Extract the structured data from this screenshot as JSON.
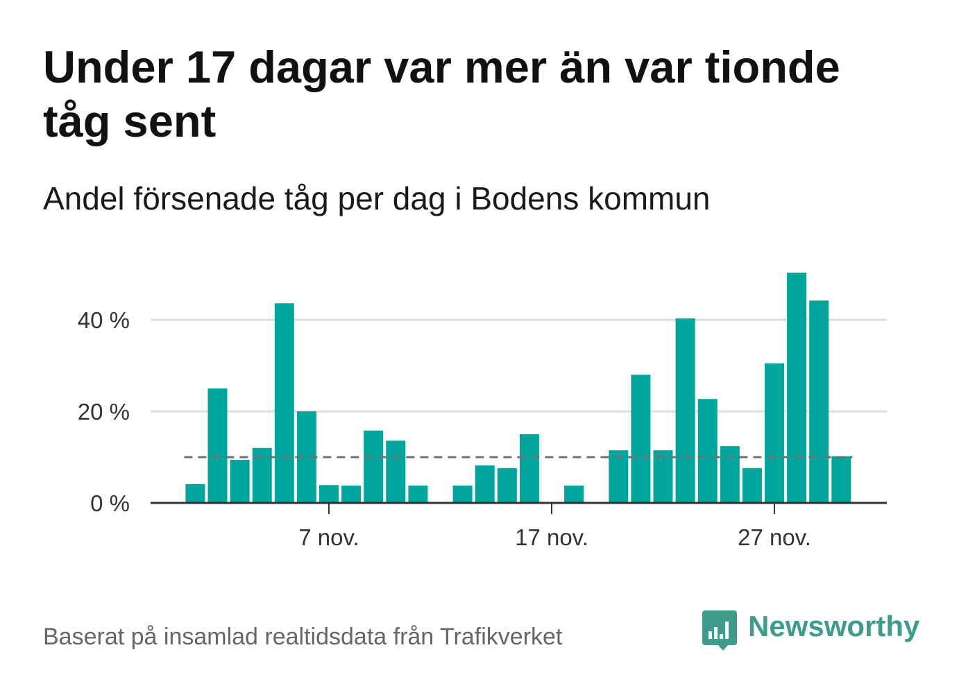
{
  "chart_data": {
    "type": "bar",
    "title": "Under 17 dagar var mer än var tionde tåg sent",
    "subtitle": "Andel försenade tåg per dag i Bodens kommun",
    "x": [
      "1 nov.",
      "2 nov.",
      "3 nov.",
      "4 nov.",
      "5 nov.",
      "6 nov.",
      "7 nov.",
      "8 nov.",
      "9 nov.",
      "10 nov.",
      "11 nov.",
      "12 nov.",
      "13 nov.",
      "14 nov.",
      "15 nov.",
      "16 nov.",
      "17 nov.",
      "18 nov.",
      "19 nov.",
      "20 nov.",
      "21 nov.",
      "22 nov.",
      "23 nov.",
      "24 nov.",
      "25 nov.",
      "26 nov.",
      "27 nov.",
      "28 nov.",
      "29 nov.",
      "30 nov."
    ],
    "values": [
      4.1,
      25.0,
      9.4,
      12.0,
      43.6,
      20.0,
      3.9,
      3.8,
      15.8,
      13.6,
      3.8,
      0,
      3.8,
      8.2,
      7.6,
      15.0,
      0,
      3.8,
      0,
      11.5,
      28.0,
      11.5,
      40.3,
      22.7,
      12.4,
      7.6,
      30.5,
      50.3,
      44.2,
      10.2
    ],
    "ylim": [
      0,
      50
    ],
    "yticks": [
      0,
      20,
      40
    ],
    "ytick_labels": [
      "0 %",
      "20 %",
      "40 %"
    ],
    "xticks": [
      "7 nov.",
      "17 nov.",
      "27 nov."
    ],
    "reference_line": {
      "value": 10,
      "style": "dashed"
    },
    "grid": "horizontal",
    "legend": "none"
  },
  "footer": {
    "source": "Baserat på insamlad realtidsdata från Trafikverket",
    "logo_text": "Newsworthy",
    "logo_icon": "bar-chart-speech-bubble-icon"
  },
  "colors": {
    "bar": "#00a59b",
    "reference_line": "#6f6f77",
    "gridline": "#dddddd",
    "axis": "#333333",
    "brand": "#3f9c8c"
  }
}
